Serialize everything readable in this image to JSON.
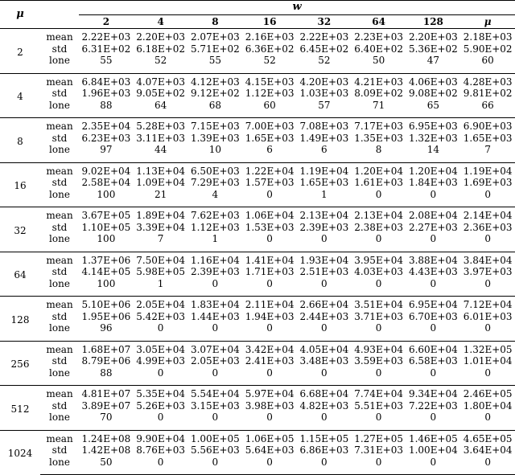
{
  "headers": {
    "mu": "μ",
    "w": "w",
    "columns": [
      "2",
      "4",
      "8",
      "16",
      "32",
      "64",
      "128",
      "μ"
    ]
  },
  "stat_labels": [
    "mean",
    "std",
    "lone"
  ],
  "groups": [
    {
      "mu": "2",
      "mean": [
        "2.22E+03",
        "2.20E+03",
        "2.07E+03",
        "2.16E+03",
        "2.22E+03",
        "2.23E+03",
        "2.20E+03",
        "2.18E+03"
      ],
      "std": [
        "6.31E+02",
        "6.18E+02",
        "5.71E+02",
        "6.36E+02",
        "6.45E+02",
        "6.40E+02",
        "5.36E+02",
        "5.90E+02"
      ],
      "lone": [
        "55",
        "52",
        "55",
        "52",
        "52",
        "50",
        "47",
        "60"
      ]
    },
    {
      "mu": "4",
      "mean": [
        "6.84E+03",
        "4.07E+03",
        "4.12E+03",
        "4.15E+03",
        "4.20E+03",
        "4.21E+03",
        "4.06E+03",
        "4.28E+03"
      ],
      "std": [
        "1.96E+03",
        "9.05E+02",
        "9.12E+02",
        "1.12E+03",
        "1.03E+03",
        "8.09E+02",
        "9.08E+02",
        "9.81E+02"
      ],
      "lone": [
        "88",
        "64",
        "68",
        "60",
        "57",
        "71",
        "65",
        "66"
      ]
    },
    {
      "mu": "8",
      "mean": [
        "2.35E+04",
        "5.28E+03",
        "7.15E+03",
        "7.00E+03",
        "7.08E+03",
        "7.17E+03",
        "6.95E+03",
        "6.90E+03"
      ],
      "std": [
        "6.23E+03",
        "3.11E+03",
        "1.39E+03",
        "1.65E+03",
        "1.49E+03",
        "1.35E+03",
        "1.32E+03",
        "1.65E+03"
      ],
      "lone": [
        "97",
        "44",
        "10",
        "6",
        "6",
        "8",
        "14",
        "7"
      ]
    },
    {
      "mu": "16",
      "mean": [
        "9.02E+04",
        "1.13E+04",
        "6.50E+03",
        "1.22E+04",
        "1.19E+04",
        "1.20E+04",
        "1.20E+04",
        "1.19E+04"
      ],
      "std": [
        "2.58E+04",
        "1.09E+04",
        "7.29E+03",
        "1.57E+03",
        "1.65E+03",
        "1.61E+03",
        "1.84E+03",
        "1.69E+03"
      ],
      "lone": [
        "100",
        "21",
        "4",
        "0",
        "1",
        "0",
        "0",
        "0"
      ]
    },
    {
      "mu": "32",
      "mean": [
        "3.67E+05",
        "1.89E+04",
        "7.62E+03",
        "1.06E+04",
        "2.13E+04",
        "2.13E+04",
        "2.08E+04",
        "2.14E+04"
      ],
      "std": [
        "1.10E+05",
        "3.39E+04",
        "1.12E+03",
        "1.53E+03",
        "2.39E+03",
        "2.38E+03",
        "2.27E+03",
        "2.36E+03"
      ],
      "lone": [
        "100",
        "7",
        "1",
        "0",
        "0",
        "0",
        "0",
        "0"
      ]
    },
    {
      "mu": "64",
      "mean": [
        "1.37E+06",
        "7.50E+04",
        "1.16E+04",
        "1.41E+04",
        "1.93E+04",
        "3.95E+04",
        "3.88E+04",
        "3.84E+04"
      ],
      "std": [
        "4.14E+05",
        "5.98E+05",
        "2.39E+03",
        "1.71E+03",
        "2.51E+03",
        "4.03E+03",
        "4.43E+03",
        "3.97E+03"
      ],
      "lone": [
        "100",
        "1",
        "0",
        "0",
        "0",
        "0",
        "0",
        "0"
      ]
    },
    {
      "mu": "128",
      "mean": [
        "5.10E+06",
        "2.05E+04",
        "1.83E+04",
        "2.11E+04",
        "2.66E+04",
        "3.51E+04",
        "6.95E+04",
        "7.12E+04"
      ],
      "std": [
        "1.95E+06",
        "5.42E+03",
        "1.44E+03",
        "1.94E+03",
        "2.44E+03",
        "3.71E+03",
        "6.70E+03",
        "6.01E+03"
      ],
      "lone": [
        "96",
        "0",
        "0",
        "0",
        "0",
        "0",
        "0",
        "0"
      ]
    },
    {
      "mu": "256",
      "mean": [
        "1.68E+07",
        "3.05E+04",
        "3.07E+04",
        "3.42E+04",
        "4.05E+04",
        "4.93E+04",
        "6.60E+04",
        "1.32E+05"
      ],
      "std": [
        "8.79E+06",
        "4.99E+03",
        "2.05E+03",
        "2.41E+03",
        "3.48E+03",
        "3.59E+03",
        "6.58E+03",
        "1.01E+04"
      ],
      "lone": [
        "88",
        "0",
        "0",
        "0",
        "0",
        "0",
        "0",
        "0"
      ]
    },
    {
      "mu": "512",
      "mean": [
        "4.81E+07",
        "5.35E+04",
        "5.54E+04",
        "5.97E+04",
        "6.68E+04",
        "7.74E+04",
        "9.34E+04",
        "2.46E+05"
      ],
      "std": [
        "3.89E+07",
        "5.26E+03",
        "3.15E+03",
        "3.98E+03",
        "4.82E+03",
        "5.51E+03",
        "7.22E+03",
        "1.80E+04"
      ],
      "lone": [
        "70",
        "0",
        "0",
        "0",
        "0",
        "0",
        "0",
        "0"
      ]
    },
    {
      "mu": "1024",
      "mean": [
        "1.24E+08",
        "9.90E+04",
        "1.00E+05",
        "1.06E+05",
        "1.15E+05",
        "1.27E+05",
        "1.46E+05",
        "4.65E+05"
      ],
      "std": [
        "1.42E+08",
        "8.76E+03",
        "5.56E+03",
        "5.64E+03",
        "6.86E+03",
        "7.31E+03",
        "1.00E+04",
        "3.64E+04"
      ],
      "lone": [
        "50",
        "0",
        "0",
        "0",
        "0",
        "0",
        "0",
        "0"
      ]
    }
  ]
}
